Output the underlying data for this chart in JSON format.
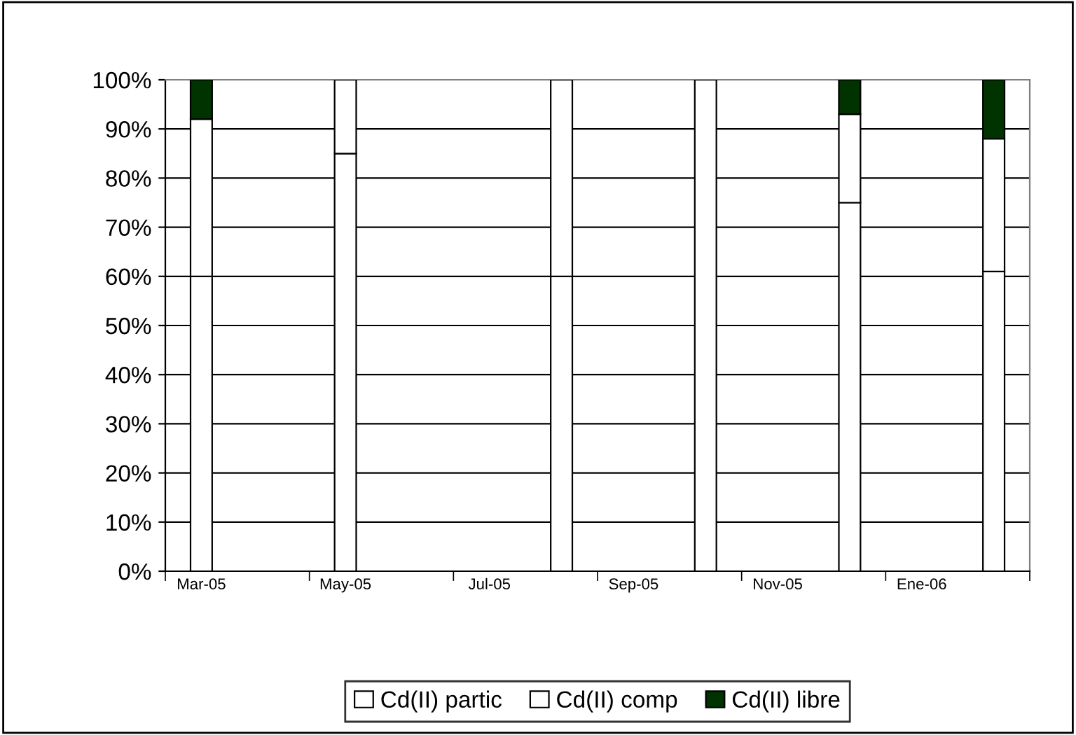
{
  "chart_data": {
    "type": "bar",
    "stacked": true,
    "categories": [
      "Mar-05",
      null,
      "May-05",
      null,
      "Jul-05",
      null,
      "Sep-05",
      null,
      "Nov-05",
      null,
      "Ene-06",
      null
    ],
    "series": [
      {
        "name": "Cd(II) partic",
        "color": "#ffffff",
        "values": [
          60,
          null,
          85,
          null,
          null,
          60,
          null,
          100,
          null,
          75,
          null,
          61
        ]
      },
      {
        "name": "Cd(II) comp",
        "color": "#ffffff",
        "values": [
          32,
          null,
          15,
          null,
          null,
          40,
          null,
          null,
          null,
          18,
          null,
          27
        ]
      },
      {
        "name": "Cd(II) libre",
        "color": "#003300",
        "values": [
          8,
          null,
          null,
          null,
          null,
          null,
          null,
          null,
          null,
          7,
          null,
          12
        ]
      }
    ],
    "ylim": [
      0,
      100
    ],
    "yticks": [
      {
        "value": 0,
        "label": "0%"
      },
      {
        "value": 10,
        "label": "10%"
      },
      {
        "value": 20,
        "label": "20%"
      },
      {
        "value": 30,
        "label": "30%"
      },
      {
        "value": 40,
        "label": "40%"
      },
      {
        "value": 50,
        "label": "50%"
      },
      {
        "value": 60,
        "label": "60%"
      },
      {
        "value": 70,
        "label": "70%"
      },
      {
        "value": 80,
        "label": "80%"
      },
      {
        "value": 90,
        "label": "90%"
      },
      {
        "value": 100,
        "label": "100%"
      }
    ],
    "grid": "y",
    "legend": "bottom"
  }
}
